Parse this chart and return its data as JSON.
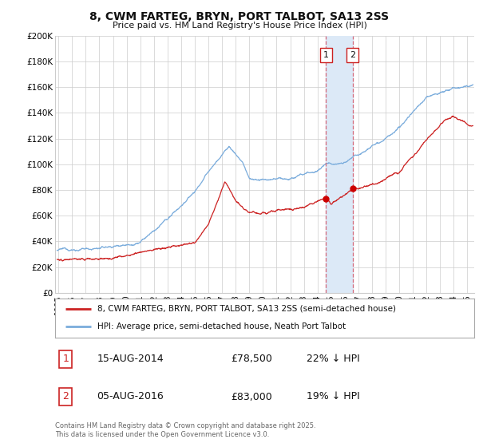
{
  "title": "8, CWM FARTEG, BRYN, PORT TALBOT, SA13 2SS",
  "subtitle": "Price paid vs. HM Land Registry's House Price Index (HPI)",
  "ylabel_ticks": [
    "£0",
    "£20K",
    "£40K",
    "£60K",
    "£80K",
    "£100K",
    "£120K",
    "£140K",
    "£160K",
    "£180K",
    "£200K"
  ],
  "ylim": [
    0,
    200000
  ],
  "xlim_start": 1994.75,
  "xlim_end": 2025.5,
  "transaction1_date": "15-AUG-2014",
  "transaction1_price": "£78,500",
  "transaction1_hpi": "22% ↓ HPI",
  "transaction1_x": 2014.617,
  "transaction2_date": "05-AUG-2016",
  "transaction2_price": "£83,000",
  "transaction2_hpi": "19% ↓ HPI",
  "transaction2_x": 2016.592,
  "shade_color": "#dce9f7",
  "vline_color": "#d4697a",
  "legend_line1_color": "#cc2222",
  "legend_line2_color": "#7aacdc",
  "legend_line1_label": "8, CWM FARTEG, BRYN, PORT TALBOT, SA13 2SS (semi-detached house)",
  "legend_line2_label": "HPI: Average price, semi-detached house, Neath Port Talbot",
  "footer": "Contains HM Land Registry data © Crown copyright and database right 2025.\nThis data is licensed under the Open Government Licence v3.0.",
  "bg_color": "#ffffff",
  "grid_color": "#cccccc",
  "dot_color": "#cc0000",
  "annotation_border_color": "#cc2222"
}
